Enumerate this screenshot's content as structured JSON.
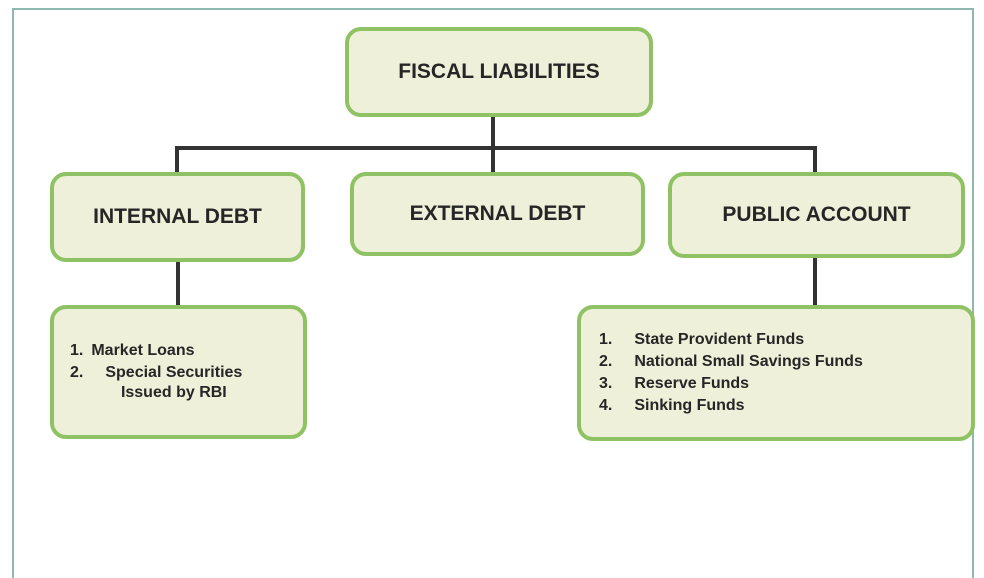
{
  "nodes": [
    {
      "label": "FISCAL LIABILITIES"
    },
    {
      "label": "INTERNAL DEBT"
    },
    {
      "label": "EXTERNAL DEBT"
    },
    {
      "label": "PUBLIC ACCOUNT"
    }
  ],
  "lists": [
    {
      "items": [
        {
          "number": "1.",
          "text": "Market Loans"
        },
        {
          "number": "2.",
          "text": "Special Securities Issued by RBI"
        }
      ]
    },
    {
      "items": [
        {
          "number": "1.",
          "text": "State Provident Funds"
        },
        {
          "number": "2.",
          "text": "National Small Savings Funds"
        },
        {
          "number": "3.",
          "text": "Reserve Funds"
        },
        {
          "number": "4.",
          "text": "Sinking Funds"
        }
      ]
    }
  ]
}
